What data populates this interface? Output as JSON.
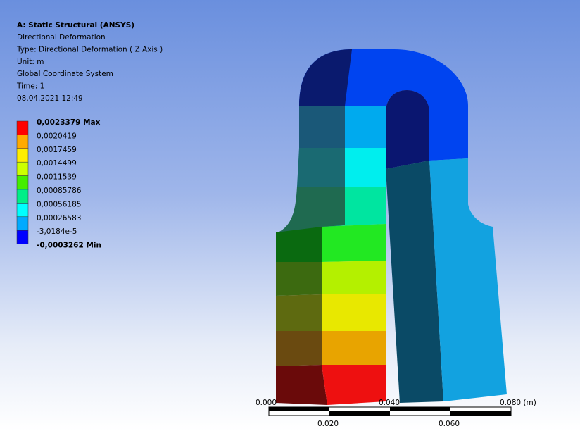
{
  "header": {
    "title": "A: Static Structural (ANSYS)",
    "lines": [
      "Directional Deformation",
      "Type: Directional Deformation ( Z Axis )",
      "Unit: m",
      "Global Coordinate System",
      "Time: 1",
      "08.04.2021 12:49"
    ]
  },
  "legend": {
    "labels": [
      "0,0023379 Max",
      "0,0020419",
      "0,0017459",
      "0,0014499",
      "0,0011539",
      "0,00085786",
      "0,00056185",
      "0,00026583",
      "-3,0184e-5",
      "-0,0003262 Min"
    ],
    "colors": [
      "#ff0000",
      "#ffaa00",
      "#ffee00",
      "#ccff00",
      "#44ee00",
      "#00ee88",
      "#00ffff",
      "#00aaff",
      "#0000ff"
    ]
  },
  "scale_bar": {
    "top_labels": [
      "0.000",
      "0.040",
      "0.080 (m)"
    ],
    "bottom_labels": [
      "0.020",
      "0.060"
    ]
  }
}
